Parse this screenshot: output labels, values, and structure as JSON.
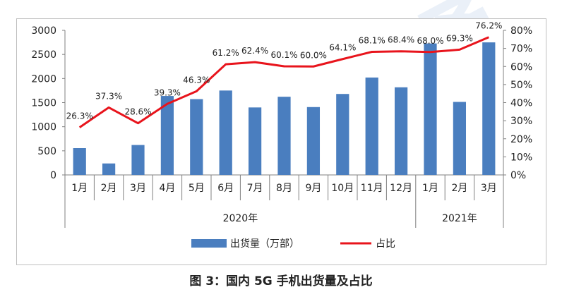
{
  "caption": "图 3：国内 5G 手机出货量及占比",
  "watermark": "中国信通",
  "colors": {
    "bar": "#4a7ebf",
    "line": "#e8141c",
    "axis": "#808080",
    "text": "#222222"
  },
  "chart_data": {
    "type": "bar",
    "categories": [
      "1月",
      "2月",
      "3月",
      "4月",
      "5月",
      "6月",
      "7月",
      "8月",
      "9月",
      "10月",
      "11月",
      "12月",
      "1月",
      "2月",
      "3月"
    ],
    "groups": [
      {
        "label": "2020年",
        "count": 12
      },
      {
        "label": "2021年",
        "count": 3
      }
    ],
    "series": [
      {
        "name": "出货量（万部）",
        "type": "bar",
        "axis": "left",
        "values": [
          556,
          238,
          621,
          1638,
          1573,
          1751,
          1400,
          1622,
          1408,
          1680,
          2021,
          1818,
          2728,
          1515,
          2750
        ]
      },
      {
        "name": "占比",
        "type": "line",
        "axis": "right",
        "values": [
          26.3,
          37.3,
          28.6,
          39.3,
          46.3,
          61.2,
          62.4,
          60.1,
          60.0,
          64.1,
          68.1,
          68.4,
          68.0,
          69.3,
          76.2
        ],
        "labels": [
          "26.3%",
          "37.3%",
          "28.6%",
          "39.3%",
          "46.3%",
          "61.2%",
          "62.4%",
          "60.1%",
          "60.0%",
          "64.1%",
          "68.1%",
          "68.4%",
          "68.0%",
          "69.3%",
          "76.2%"
        ]
      }
    ],
    "y_left": {
      "ticks": [
        "0",
        "500",
        "1000",
        "1500",
        "2000",
        "2500",
        "3000"
      ],
      "ylim": [
        0,
        3000
      ]
    },
    "y_right": {
      "ticks": [
        "0%",
        "10%",
        "20%",
        "30%",
        "40%",
        "50%",
        "60%",
        "70%",
        "80%"
      ],
      "ylim": [
        0,
        80
      ]
    },
    "legend": "bottom-center",
    "grid": false
  }
}
